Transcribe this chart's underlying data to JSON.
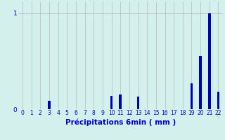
{
  "categories": [
    0,
    1,
    2,
    3,
    4,
    5,
    6,
    7,
    8,
    9,
    10,
    11,
    12,
    13,
    14,
    15,
    16,
    17,
    18,
    19,
    20,
    21,
    22
  ],
  "values": [
    0,
    0,
    0,
    0.09,
    0,
    0,
    0,
    0,
    0,
    0,
    0.14,
    0.15,
    0.0,
    0.13,
    0,
    0,
    0,
    0,
    0,
    0.27,
    0.55,
    1.0,
    0.18
  ],
  "bar_color": "#0000bb",
  "background_color": "#d4f0ec",
  "vgrid_color": "#b8b8b8",
  "hgrid_color": "#b8b8b8",
  "xlabel": "Précipitations 6min ( mm )",
  "xlim": [
    -0.5,
    22.5
  ],
  "ylim": [
    0,
    1.12
  ],
  "xlabel_fontsize": 7.5,
  "xtick_fontsize": 5.5,
  "ytick_fontsize": 6.5,
  "bar_width": 0.3
}
